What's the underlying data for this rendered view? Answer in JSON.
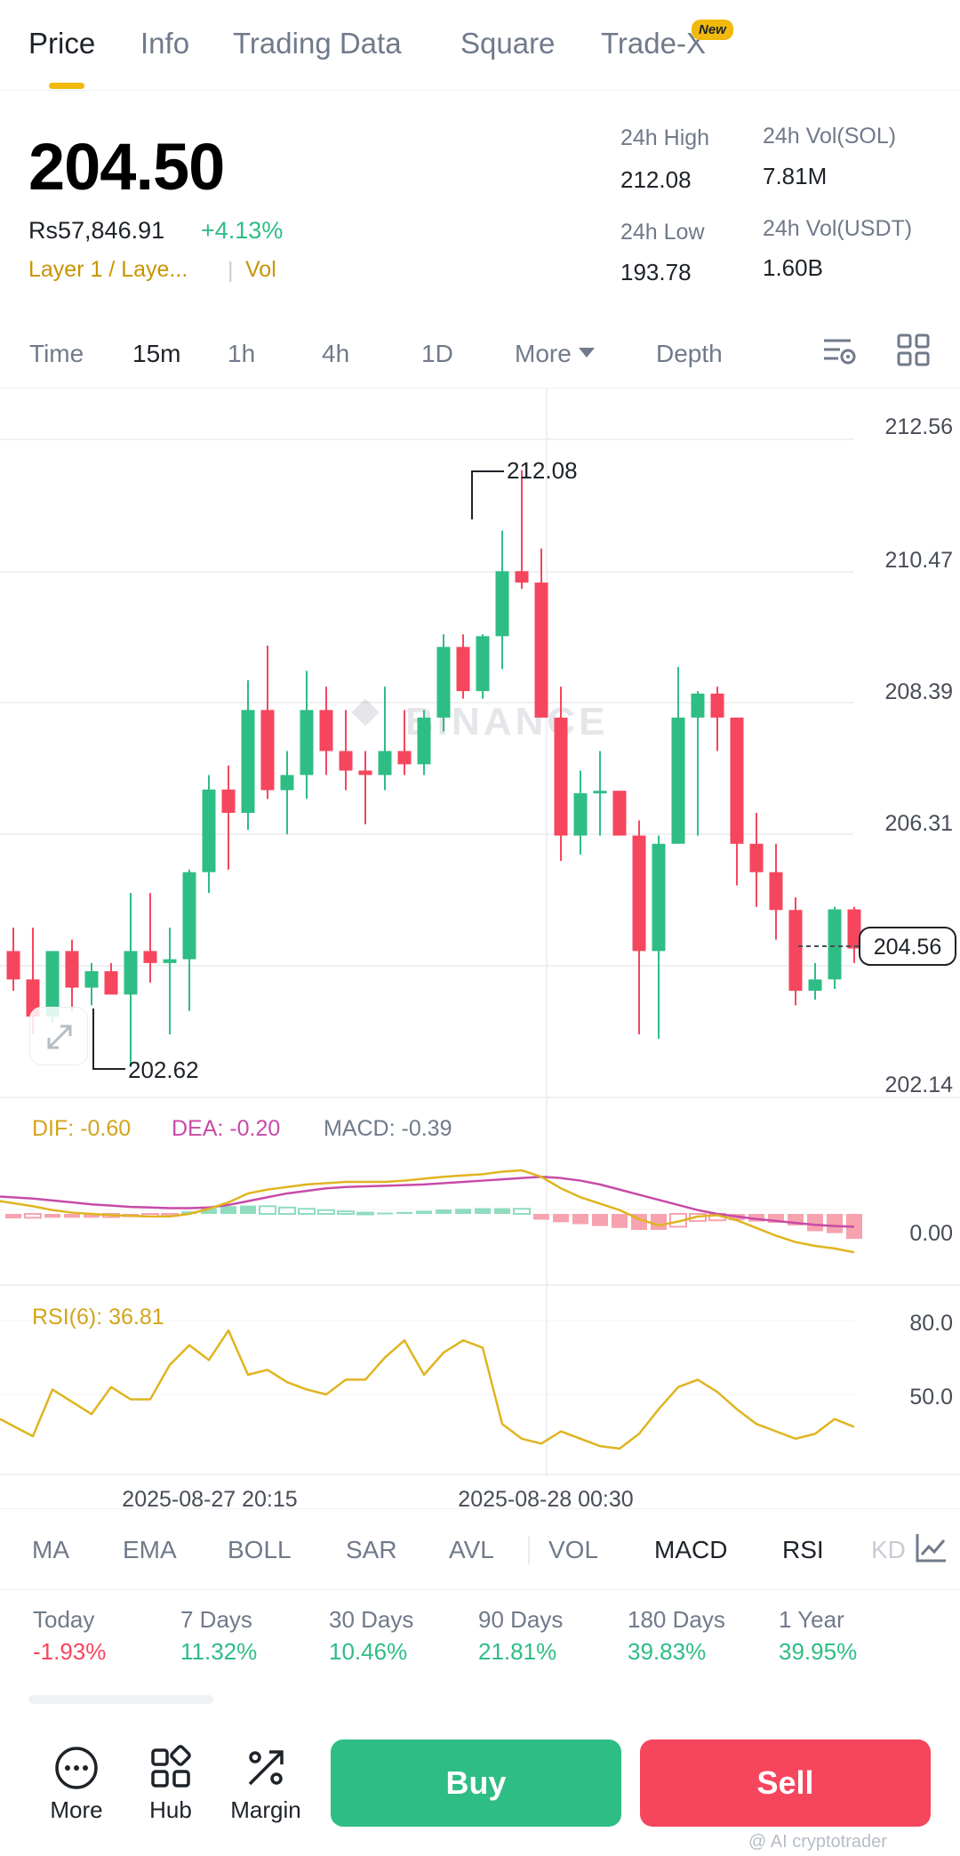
{
  "tabs": [
    {
      "label": "Price",
      "active": true
    },
    {
      "label": "Info",
      "active": false
    },
    {
      "label": "Trading Data",
      "active": false
    },
    {
      "label": "Square",
      "active": false
    },
    {
      "label": "Trade-X",
      "active": false
    }
  ],
  "new_badge": "New",
  "header": {
    "price": "204.50",
    "fiat": "Rs57,846.91",
    "change": "+4.13%",
    "category": "Layer 1 / Laye...",
    "vol_tag": "Vol",
    "stats": {
      "high_label": "24h High",
      "high_value": "212.08",
      "low_label": "24h Low",
      "low_value": "193.78",
      "vol_sol_label": "24h Vol(SOL)",
      "vol_sol_value": "7.81M",
      "vol_usdt_label": "24h Vol(USDT)",
      "vol_usdt_value": "1.60B"
    }
  },
  "intervals": {
    "time": "Time",
    "m15": "15m",
    "h1": "1h",
    "h4": "4h",
    "d1": "1D",
    "more": "More",
    "depth": "Depth"
  },
  "chart_data": {
    "type": "candlestick",
    "interval": "15m",
    "y_axis_labels": [
      "212.56",
      "210.47",
      "208.39",
      "206.31",
      "202.14"
    ],
    "current_price_label": "204.56",
    "high_marker": "212.08",
    "low_marker": "202.62",
    "watermark": "BINANCE",
    "x_labels": [
      "2025-08-27 20:15",
      "2025-08-28 00:30"
    ],
    "colors": {
      "up": "#2ebd85",
      "down": "#f6465d"
    },
    "candles": [
      {
        "o": 204.46,
        "h": 204.83,
        "l": 203.83,
        "c": 204.01
      },
      {
        "o": 204.01,
        "h": 204.83,
        "l": 203.14,
        "c": 203.42
      },
      {
        "o": 203.42,
        "h": 204.46,
        "l": 203.32,
        "c": 204.46
      },
      {
        "o": 204.46,
        "h": 204.64,
        "l": 203.51,
        "c": 203.88
      },
      {
        "o": 203.88,
        "h": 204.27,
        "l": 203.6,
        "c": 204.14
      },
      {
        "o": 204.14,
        "h": 204.27,
        "l": 203.8,
        "c": 203.77
      },
      {
        "o": 203.77,
        "h": 205.38,
        "l": 202.62,
        "c": 204.46
      },
      {
        "o": 204.46,
        "h": 205.38,
        "l": 203.96,
        "c": 204.27
      },
      {
        "o": 204.27,
        "h": 204.83,
        "l": 203.14,
        "c": 204.33
      },
      {
        "o": 204.33,
        "h": 205.75,
        "l": 203.51,
        "c": 205.71
      },
      {
        "o": 205.71,
        "h": 207.25,
        "l": 205.38,
        "c": 207.02
      },
      {
        "o": 207.02,
        "h": 207.4,
        "l": 205.75,
        "c": 206.65
      },
      {
        "o": 206.65,
        "h": 208.75,
        "l": 206.38,
        "c": 208.28
      },
      {
        "o": 208.28,
        "h": 209.3,
        "l": 206.87,
        "c": 207.01
      },
      {
        "o": 207.01,
        "h": 207.63,
        "l": 206.31,
        "c": 207.25
      },
      {
        "o": 207.25,
        "h": 208.9,
        "l": 206.87,
        "c": 208.28
      },
      {
        "o": 208.28,
        "h": 208.65,
        "l": 207.25,
        "c": 207.63
      },
      {
        "o": 207.63,
        "h": 208.28,
        "l": 207.01,
        "c": 207.32
      },
      {
        "o": 207.32,
        "h": 207.63,
        "l": 206.47,
        "c": 207.25
      },
      {
        "o": 207.25,
        "h": 208.65,
        "l": 207.01,
        "c": 207.63
      },
      {
        "o": 207.63,
        "h": 208.28,
        "l": 207.25,
        "c": 207.42
      },
      {
        "o": 207.42,
        "h": 208.28,
        "l": 207.25,
        "c": 208.16
      },
      {
        "o": 208.16,
        "h": 209.48,
        "l": 207.94,
        "c": 209.28
      },
      {
        "o": 209.28,
        "h": 209.48,
        "l": 208.46,
        "c": 208.58
      },
      {
        "o": 208.58,
        "h": 209.48,
        "l": 208.46,
        "c": 209.45
      },
      {
        "o": 209.45,
        "h": 211.12,
        "l": 208.93,
        "c": 210.48
      },
      {
        "o": 210.48,
        "h": 212.08,
        "l": 210.2,
        "c": 210.3
      },
      {
        "o": 210.3,
        "h": 210.84,
        "l": 208.16,
        "c": 208.16
      },
      {
        "o": 208.16,
        "h": 208.65,
        "l": 205.89,
        "c": 206.29
      },
      {
        "o": 206.29,
        "h": 207.32,
        "l": 205.99,
        "c": 206.96
      },
      {
        "o": 206.96,
        "h": 207.63,
        "l": 206.29,
        "c": 207.0
      },
      {
        "o": 207.0,
        "h": 207.0,
        "l": 206.29,
        "c": 206.29
      },
      {
        "o": 206.29,
        "h": 206.53,
        "l": 203.14,
        "c": 204.46
      },
      {
        "o": 204.46,
        "h": 206.29,
        "l": 203.07,
        "c": 206.16
      },
      {
        "o": 206.16,
        "h": 208.96,
        "l": 206.16,
        "c": 208.16
      },
      {
        "o": 208.16,
        "h": 208.58,
        "l": 206.29,
        "c": 208.54
      },
      {
        "o": 208.54,
        "h": 208.65,
        "l": 207.63,
        "c": 208.16
      },
      {
        "o": 208.16,
        "h": 208.16,
        "l": 205.5,
        "c": 206.16
      },
      {
        "o": 206.16,
        "h": 206.65,
        "l": 205.16,
        "c": 205.71
      },
      {
        "o": 205.71,
        "h": 206.16,
        "l": 204.64,
        "c": 205.11
      },
      {
        "o": 205.11,
        "h": 205.31,
        "l": 203.6,
        "c": 203.83
      },
      {
        "o": 203.83,
        "h": 204.27,
        "l": 203.69,
        "c": 204.01
      },
      {
        "o": 204.01,
        "h": 205.16,
        "l": 203.86,
        "c": 205.12
      },
      {
        "o": 205.12,
        "h": 205.16,
        "l": 204.27,
        "c": 204.5
      }
    ],
    "macd": {
      "dif_label": "DIF: -0.60",
      "dea_label": "DEA: -0.20",
      "macd_label": "MACD: -0.39",
      "zero_label": "0.00",
      "dif": [
        0.2,
        0.12,
        0.06,
        0.02,
        0.0,
        -0.02,
        -0.03,
        -0.04,
        -0.04,
        0.0,
        0.08,
        0.18,
        0.32,
        0.38,
        0.42,
        0.46,
        0.48,
        0.5,
        0.5,
        0.5,
        0.52,
        0.55,
        0.58,
        0.6,
        0.62,
        0.66,
        0.68,
        0.58,
        0.4,
        0.26,
        0.16,
        0.06,
        -0.08,
        -0.18,
        -0.12,
        -0.04,
        -0.02,
        -0.1,
        -0.22,
        -0.34,
        -0.44,
        -0.5,
        -0.54,
        -0.6
      ],
      "dea": [
        0.27,
        0.24,
        0.21,
        0.18,
        0.15,
        0.13,
        0.11,
        0.1,
        0.09,
        0.09,
        0.1,
        0.14,
        0.2,
        0.26,
        0.32,
        0.36,
        0.4,
        0.42,
        0.43,
        0.44,
        0.45,
        0.46,
        0.48,
        0.5,
        0.52,
        0.54,
        0.56,
        0.58,
        0.56,
        0.52,
        0.46,
        0.38,
        0.3,
        0.22,
        0.14,
        0.06,
        0.0,
        -0.04,
        -0.08,
        -0.11,
        -0.14,
        -0.17,
        -0.19,
        -0.2
      ],
      "hist": [
        -0.07,
        -0.06,
        -0.06,
        -0.06,
        -0.06,
        -0.05,
        -0.05,
        -0.04,
        -0.03,
        0.04,
        0.09,
        0.12,
        0.13,
        0.12,
        0.1,
        0.08,
        0.06,
        0.04,
        0.02,
        0.02,
        0.03,
        0.05,
        0.07,
        0.08,
        0.09,
        0.09,
        0.08,
        -0.09,
        -0.13,
        -0.16,
        -0.19,
        -0.22,
        -0.25,
        -0.25,
        -0.2,
        -0.11,
        -0.1,
        -0.1,
        -0.12,
        -0.14,
        -0.18,
        -0.27,
        -0.3,
        -0.39
      ]
    },
    "rsi": {
      "label": "RSI(6): 36.81",
      "ticks": [
        "80.0",
        "50.0"
      ],
      "values": [
        40,
        33,
        52,
        47,
        42,
        53,
        48,
        48,
        62,
        70,
        64,
        76,
        58,
        60,
        55,
        52,
        50,
        56,
        56,
        65,
        72,
        58,
        67,
        72,
        69,
        38,
        32,
        30,
        35,
        32,
        29,
        28,
        34,
        44,
        53,
        56,
        51,
        44,
        38,
        35,
        32,
        34,
        40,
        36.81
      ]
    }
  },
  "indicators": [
    {
      "label": "MA",
      "active": false
    },
    {
      "label": "EMA",
      "active": false
    },
    {
      "label": "BOLL",
      "active": false
    },
    {
      "label": "SAR",
      "active": false
    },
    {
      "label": "AVL",
      "active": false
    },
    {
      "label": "VOL",
      "active": false
    },
    {
      "label": "MACD",
      "active": true
    },
    {
      "label": "RSI",
      "active": true
    },
    {
      "label": "KD",
      "active": false
    }
  ],
  "performance": [
    {
      "label": "Today",
      "value": "-1.93%",
      "positive": false
    },
    {
      "label": "7 Days",
      "value": "11.32%",
      "positive": true
    },
    {
      "label": "30 Days",
      "value": "10.46%",
      "positive": true
    },
    {
      "label": "90 Days",
      "value": "21.81%",
      "positive": true
    },
    {
      "label": "180 Days",
      "value": "39.83%",
      "positive": true
    },
    {
      "label": "1 Year",
      "value": "39.95%",
      "positive": true
    }
  ],
  "bottom": {
    "more": "More",
    "hub": "Hub",
    "margin": "Margin",
    "buy": "Buy",
    "sell": "Sell",
    "watermark": "@ AI cryptotrader"
  }
}
